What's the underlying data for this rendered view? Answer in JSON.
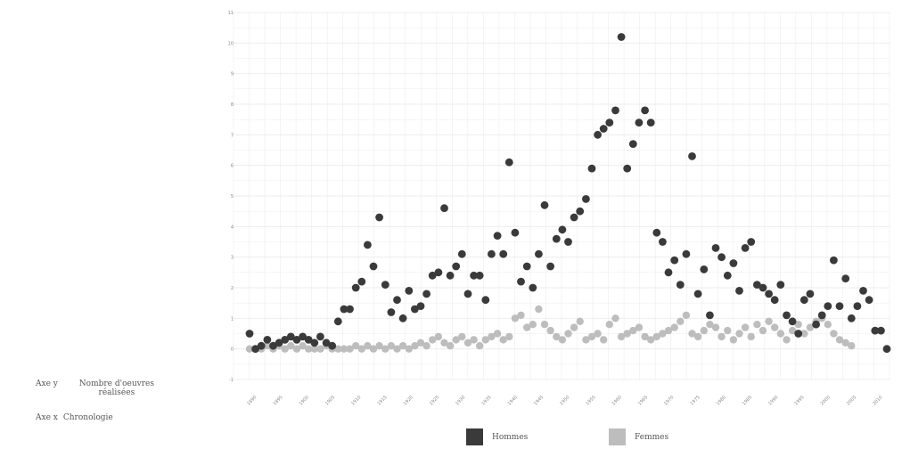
{
  "axis_key": {
    "y_key": "Axe y",
    "y_value": "Nombre d'oeuvres réalisées",
    "x_key": "Axe x",
    "x_value": "Chronologie"
  },
  "legend": {
    "men": "Hommes",
    "women": "Femmes"
  },
  "colors": {
    "men": "#3a3a3a",
    "women": "#bdbdbd",
    "grid": "#ececec"
  },
  "chart_data": {
    "type": "scatter",
    "title": "",
    "xlabel": "Chronologie",
    "ylabel": "Nombre d'oeuvres réalisées",
    "x_tick_labels": [
      "1890",
      "1895",
      "1900",
      "1905",
      "1910",
      "1915",
      "1920",
      "1925",
      "1930",
      "1935",
      "1940",
      "1945",
      "1950",
      "1955",
      "1960",
      "1965",
      "1970",
      "1975",
      "1980",
      "1985",
      "1990",
      "1995",
      "2000",
      "2005",
      "2010"
    ],
    "y_tick_labels": [
      "-1",
      "0",
      "1",
      "2",
      "3",
      "4",
      "5",
      "6",
      "7",
      "8",
      "9",
      "10",
      "11"
    ],
    "ylim": [
      -1,
      11
    ],
    "grid": true,
    "legend_position": "bottom",
    "series": [
      {
        "name": "Hommes",
        "values": [
          0.5,
          0.0,
          0.1,
          0.3,
          0.1,
          0.2,
          0.3,
          0.4,
          0.3,
          0.4,
          0.3,
          0.2,
          0.4,
          0.2,
          0.1,
          0.9,
          1.3,
          1.3,
          2.0,
          2.2,
          3.4,
          2.7,
          4.3,
          2.1,
          1.2,
          1.6,
          1.0,
          1.9,
          1.3,
          1.4,
          1.8,
          2.4,
          2.5,
          4.6,
          2.4,
          2.7,
          3.1,
          1.8,
          2.4,
          2.4,
          1.6,
          3.1,
          3.7,
          3.1,
          6.1,
          3.8,
          2.2,
          2.7,
          2.0,
          3.1,
          4.7,
          2.7,
          3.6,
          3.9,
          3.5,
          4.3,
          4.5,
          4.9,
          5.9,
          7.0,
          7.2,
          7.4,
          7.8,
          10.2,
          5.9,
          6.7,
          7.4,
          7.8,
          7.4,
          3.8,
          3.5,
          2.5,
          2.9,
          2.1,
          3.1,
          6.3,
          1.8,
          2.6,
          1.1,
          3.3,
          3.0,
          2.4,
          2.8,
          1.9,
          3.3,
          3.5,
          2.1,
          2.0,
          1.8,
          1.6,
          2.1,
          1.1,
          0.9,
          0.5,
          1.6,
          1.8,
          0.8,
          1.1,
          1.4,
          2.9,
          1.4,
          2.3,
          1.0,
          1.4,
          1.9,
          1.6,
          0.6,
          0.6,
          0.0
        ]
      },
      {
        "name": "Femmes",
        "values": [
          0.0,
          0.0,
          0.0,
          0.1,
          0.0,
          0.1,
          0.0,
          0.1,
          0.0,
          0.1,
          0.0,
          0.0,
          0.0,
          0.1,
          0.0,
          0.0,
          0.0,
          0.0,
          0.1,
          0.0,
          0.1,
          0.0,
          0.1,
          0.0,
          0.1,
          0.0,
          0.1,
          0.0,
          0.1,
          0.2,
          0.1,
          0.3,
          0.4,
          0.2,
          0.1,
          0.3,
          0.4,
          0.2,
          0.3,
          0.1,
          0.3,
          0.4,
          0.5,
          0.3,
          0.4,
          1.0,
          1.1,
          0.7,
          0.8,
          1.3,
          0.8,
          0.6,
          0.4,
          0.3,
          0.5,
          0.7,
          0.9,
          0.3,
          0.4,
          0.5,
          0.3,
          0.8,
          1.0,
          0.4,
          0.5,
          0.6,
          0.7,
          0.4,
          0.3,
          0.4,
          0.5,
          0.6,
          0.7,
          0.9,
          1.1,
          0.5,
          0.4,
          0.6,
          0.8,
          0.7,
          0.4,
          0.6,
          0.3,
          0.5,
          0.7,
          0.4,
          0.8,
          0.6,
          0.9,
          0.7,
          0.5,
          0.3,
          0.6,
          0.8,
          0.5,
          0.7,
          0.9,
          1.0,
          0.8,
          0.5,
          0.3,
          0.2,
          0.1
        ]
      }
    ]
  }
}
